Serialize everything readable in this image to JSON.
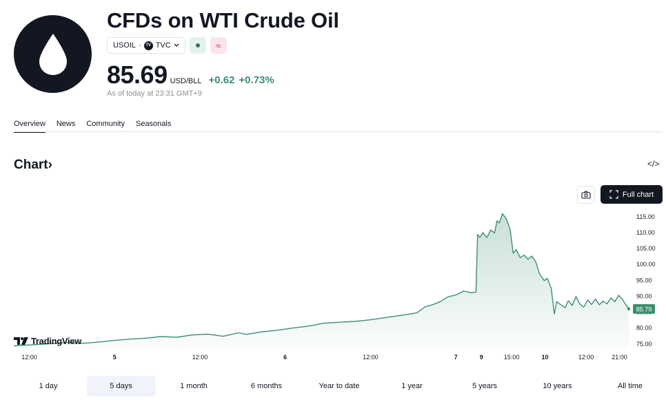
{
  "header": {
    "title": "CFDs on WTI Crude Oil",
    "symbol": "USOIL",
    "separator": "·",
    "exchange": "TVC",
    "tvc_badge": "TV"
  },
  "quote": {
    "price": "85.69",
    "unit": "USD/BLL",
    "change": "+0.62",
    "change_pct": "+0.73%",
    "as_of": "As of today at 23:31 GMT+9",
    "change_color": "#3d8f6e"
  },
  "tabs": [
    {
      "label": "Overview",
      "active": true
    },
    {
      "label": "News",
      "active": false
    },
    {
      "label": "Community",
      "active": false
    },
    {
      "label": "Seasonals",
      "active": false
    }
  ],
  "chart_section": {
    "title": "Chart",
    "chevron": "›",
    "embed_icon": "</>",
    "full_chart_label": "Full chart",
    "brand": "TradingView"
  },
  "ranges": [
    {
      "label": "1 day",
      "active": false
    },
    {
      "label": "5 days",
      "active": true
    },
    {
      "label": "1 month",
      "active": false
    },
    {
      "label": "6 months",
      "active": false
    },
    {
      "label": "Year to date",
      "active": false
    },
    {
      "label": "1 year",
      "active": false
    },
    {
      "label": "5 years",
      "active": false
    },
    {
      "label": "10 years",
      "active": false
    },
    {
      "label": "All time",
      "active": false
    }
  ],
  "chart_data": {
    "type": "area",
    "series_color": "#3d8f6e",
    "last_value_label": "85.79",
    "ylim": [
      73,
      118
    ],
    "y_ticks": [
      75,
      80,
      85,
      90,
      95,
      100,
      105,
      110,
      115
    ],
    "y_tick_labels": [
      "75.00",
      "80.00",
      "85.00",
      "90.00",
      "95.00",
      "100.00",
      "105.00",
      "110.00",
      "115.00"
    ],
    "x_ticks": [
      {
        "label": "12:00",
        "bold": false,
        "x": 0
      },
      {
        "label": "5",
        "bold": true,
        "x": 11
      },
      {
        "label": "12:00",
        "bold": false,
        "x": 22
      },
      {
        "label": "6",
        "bold": true,
        "x": 33
      },
      {
        "label": "12:00",
        "bold": false,
        "x": 44
      },
      {
        "label": "7",
        "bold": true,
        "x": 55
      },
      {
        "label": "9",
        "bold": true,
        "x": 58.3
      },
      {
        "label": "15:00",
        "bold": false,
        "x": 62.2
      },
      {
        "label": "10",
        "bold": true,
        "x": 66.5
      },
      {
        "label": "12:00",
        "bold": false,
        "x": 71.8
      },
      {
        "label": "21:00",
        "bold": false,
        "x": 76.1
      }
    ],
    "xlim": [
      -2,
      77.3
    ],
    "x": [
      -2,
      1,
      3,
      5,
      7,
      9,
      11,
      13,
      15,
      17,
      19,
      21,
      23,
      25,
      27,
      28,
      30,
      32,
      34,
      36,
      38,
      40,
      42,
      44,
      46,
      48,
      50,
      51,
      52,
      53,
      54,
      55,
      56,
      57,
      57.6,
      57.8,
      58.1,
      58.5,
      59.0,
      59.5,
      60.0,
      60.3,
      60.6,
      61.0,
      61.5,
      62.0,
      62.4,
      62.8,
      63.3,
      63.8,
      64.3,
      64.8,
      65.3,
      65.8,
      66.4,
      66.8,
      67.3,
      67.7,
      68.0,
      68.3,
      68.7,
      69.1,
      69.5,
      70.0,
      70.5,
      71.0,
      71.5,
      72.0,
      72.5,
      73.0,
      73.5,
      74.0,
      74.5,
      75.0,
      75.5,
      76.0,
      76.5,
      77.0,
      77.3
    ],
    "values": [
      74.2,
      74.6,
      74.9,
      75.3,
      75.0,
      75.4,
      75.9,
      76.3,
      76.6,
      77.1,
      76.9,
      77.6,
      77.9,
      77.2,
      78.3,
      77.8,
      78.6,
      79.1,
      79.8,
      80.4,
      81.3,
      81.6,
      81.9,
      82.4,
      83.1,
      83.8,
      84.6,
      86.4,
      87.1,
      88.1,
      89.6,
      90.2,
      91.4,
      90.9,
      91.1,
      109.2,
      108.3,
      109.8,
      108.2,
      110.6,
      109.7,
      113.5,
      112.8,
      115.7,
      114.2,
      110.8,
      103.3,
      104.4,
      101.9,
      102.7,
      101.4,
      102.4,
      100.7,
      96.8,
      94.7,
      95.4,
      92.3,
      84.2,
      88.1,
      87.5,
      86.9,
      86.2,
      88.4,
      86.9,
      89.7,
      87.3,
      86.4,
      88.6,
      87.2,
      88.9,
      87.1,
      88.2,
      87.4,
      89.3,
      88.1,
      90.1,
      88.7,
      86.8,
      85.8
    ]
  }
}
